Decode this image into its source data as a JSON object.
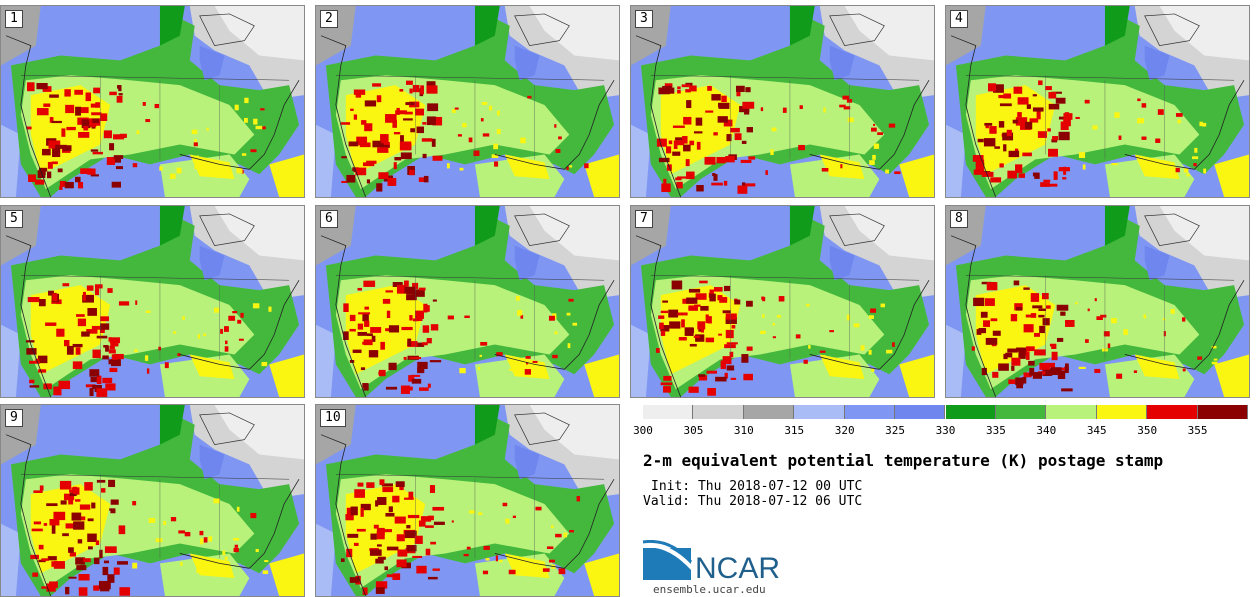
{
  "members": [
    "1",
    "2",
    "3",
    "4",
    "5",
    "6",
    "7",
    "8",
    "9",
    "10"
  ],
  "colorbar": {
    "ticks": [
      "300",
      "305",
      "310",
      "315",
      "320",
      "325",
      "330",
      "335",
      "340",
      "345",
      "350",
      "355"
    ],
    "colors": [
      "#eeeeee",
      "#d4d4d4",
      "#a6a6a6",
      "#aabcf5",
      "#7f97f3",
      "#6f86ee",
      "#109c1a",
      "#44b83d",
      "#b8f27a",
      "#fbf512",
      "#e40000",
      "#8b0000"
    ]
  },
  "title": "2-m equivalent potential temperature (K) postage stamp",
  "init": "Init: Thu 2018-07-12 00 UTC",
  "valid": "Valid: Thu 2018-07-12 06 UTC",
  "logo": {
    "text": "NCAR",
    "url": "ensemble.ucar.edu",
    "accent": "#1f7ab8"
  }
}
